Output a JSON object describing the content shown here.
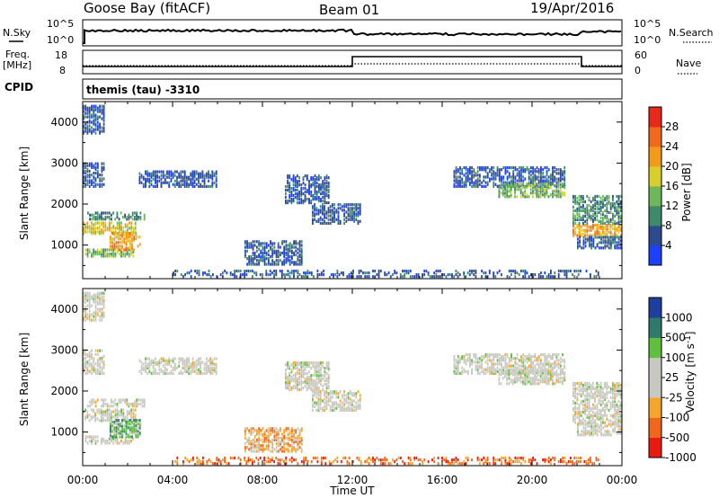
{
  "header": {
    "station": "Goose Bay (fitACF)",
    "beam": "Beam 01",
    "date": "19/Apr/2016"
  },
  "top_panels": {
    "nsky_label": "N.Sky",
    "nsky_ticks": [
      "10^5",
      "10^0"
    ],
    "nsearch_label": "N.Search",
    "nsearch_ticks": [
      "10^5",
      "10^0"
    ],
    "freq_label_1": "Freq.",
    "freq_label_2": "[MHz]",
    "freq_ticks": [
      "18",
      "8"
    ],
    "nave_label": "Nave",
    "nave_ticks": [
      "60",
      "0"
    ],
    "cpid_label": "CPID",
    "cpid_text": "themis (tau) -3310"
  },
  "colors": {
    "power_scale": [
      "#1f3fff",
      "#2c4a8f",
      "#3f8a6a",
      "#6fb85a",
      "#d8cf2a",
      "#f39a1a",
      "#ef6a1a",
      "#e8281a"
    ],
    "velocity_scale": [
      "#ea1a12",
      "#f0661a",
      "#f4a62a",
      "#c8c8c0",
      "#c8c8c0",
      "#5fbf3f",
      "#2f7a6a",
      "#1f3f9f"
    ]
  },
  "chart_data": [
    {
      "type": "heatmap",
      "name": "power",
      "xlabel": "",
      "ylabel": "Slant Range [km]",
      "y_ticks": [
        "4000",
        "3000",
        "2000",
        "1000"
      ],
      "colorbar_label": "Power [dB]",
      "colorbar_ticks": [
        "28",
        "24",
        "20",
        "16",
        "12",
        "8",
        "4"
      ],
      "clim": [
        0,
        32
      ],
      "xlim": [
        "00:00",
        "24:00"
      ],
      "ylim": [
        180,
        4500
      ],
      "regions": [
        {
          "t0": 0.0,
          "t1": 2.4,
          "r0": 1250,
          "r1": 1550,
          "level": 4
        },
        {
          "t0": 0.1,
          "t1": 2.3,
          "r0": 700,
          "r1": 900,
          "level": 3
        },
        {
          "t0": 1.2,
          "t1": 2.6,
          "r0": 850,
          "r1": 1300,
          "level": 5
        },
        {
          "t0": 0.2,
          "t1": 2.8,
          "r0": 1600,
          "r1": 1800,
          "level": 2
        },
        {
          "t0": 2.5,
          "t1": 6.0,
          "r0": 2400,
          "r1": 2800,
          "level": 1
        },
        {
          "t0": 0.0,
          "t1": 1.0,
          "r0": 2400,
          "r1": 3000,
          "level": 1
        },
        {
          "t0": 0.0,
          "t1": 1.0,
          "r0": 3700,
          "r1": 4400,
          "level": 1
        },
        {
          "t0": 10.2,
          "t1": 12.4,
          "r0": 1500,
          "r1": 2000,
          "level": 1
        },
        {
          "t0": 9.0,
          "t1": 11.0,
          "r0": 2000,
          "r1": 2700,
          "level": 1
        },
        {
          "t0": 7.2,
          "t1": 9.8,
          "r0": 500,
          "r1": 1100,
          "level": 1
        },
        {
          "t0": 16.5,
          "t1": 21.5,
          "r0": 2400,
          "r1": 2900,
          "level": 1
        },
        {
          "t0": 18.5,
          "t1": 21.5,
          "r0": 2150,
          "r1": 2500,
          "level": 3
        },
        {
          "t0": 21.8,
          "t1": 24.0,
          "r0": 1200,
          "r1": 1500,
          "level": 5
        },
        {
          "t0": 21.8,
          "t1": 24.0,
          "r0": 1500,
          "r1": 2200,
          "level": 2
        },
        {
          "t0": 22.0,
          "t1": 24.0,
          "r0": 900,
          "r1": 1200,
          "level": 1
        },
        {
          "t0": 4.0,
          "t1": 23.0,
          "r0": 200,
          "r1": 380,
          "level": 1
        }
      ]
    },
    {
      "type": "heatmap",
      "name": "velocity",
      "xlabel": "Time UT",
      "ylabel": "Slant Range [km]",
      "x_ticks": [
        "00:00",
        "04:00",
        "08:00",
        "12:00",
        "16:00",
        "20:00",
        "00:00"
      ],
      "y_ticks": [
        "4000",
        "3000",
        "2000",
        "1000"
      ],
      "colorbar_label": "Velocity [m s^-1]",
      "colorbar_ticks": [
        "1000",
        "500",
        "100",
        "25",
        "-25",
        "-100",
        "-500",
        "-1000"
      ],
      "xlim": [
        "00:00",
        "24:00"
      ],
      "ylim": [
        180,
        4500
      ],
      "regions": [
        {
          "t0": 0.0,
          "t1": 2.4,
          "r0": 1250,
          "r1": 1550,
          "level": 3
        },
        {
          "t0": 0.1,
          "t1": 2.3,
          "r0": 700,
          "r1": 900,
          "level": 3
        },
        {
          "t0": 1.2,
          "t1": 2.6,
          "r0": 850,
          "r1": 1300,
          "level": 5
        },
        {
          "t0": 0.2,
          "t1": 2.8,
          "r0": 1600,
          "r1": 1800,
          "level": 3
        },
        {
          "t0": 2.5,
          "t1": 6.0,
          "r0": 2400,
          "r1": 2800,
          "level": 3
        },
        {
          "t0": 0.0,
          "t1": 1.0,
          "r0": 2400,
          "r1": 3000,
          "level": 3
        },
        {
          "t0": 0.0,
          "t1": 1.0,
          "r0": 3700,
          "r1": 4400,
          "level": 3
        },
        {
          "t0": 10.2,
          "t1": 12.4,
          "r0": 1500,
          "r1": 2000,
          "level": 3
        },
        {
          "t0": 9.0,
          "t1": 11.0,
          "r0": 2000,
          "r1": 2700,
          "level": 3
        },
        {
          "t0": 7.2,
          "t1": 9.8,
          "r0": 500,
          "r1": 1100,
          "level": 2
        },
        {
          "t0": 16.5,
          "t1": 21.5,
          "r0": 2400,
          "r1": 2900,
          "level": 3
        },
        {
          "t0": 18.5,
          "t1": 21.5,
          "r0": 2150,
          "r1": 2500,
          "level": 3
        },
        {
          "t0": 21.8,
          "t1": 24.0,
          "r0": 1200,
          "r1": 1500,
          "level": 3
        },
        {
          "t0": 21.8,
          "t1": 24.0,
          "r0": 1500,
          "r1": 2200,
          "level": 3
        },
        {
          "t0": 22.0,
          "t1": 24.0,
          "r0": 900,
          "r1": 1200,
          "level": 3
        },
        {
          "t0": 4.0,
          "t1": 23.0,
          "r0": 200,
          "r1": 380,
          "level": 1
        }
      ]
    }
  ]
}
